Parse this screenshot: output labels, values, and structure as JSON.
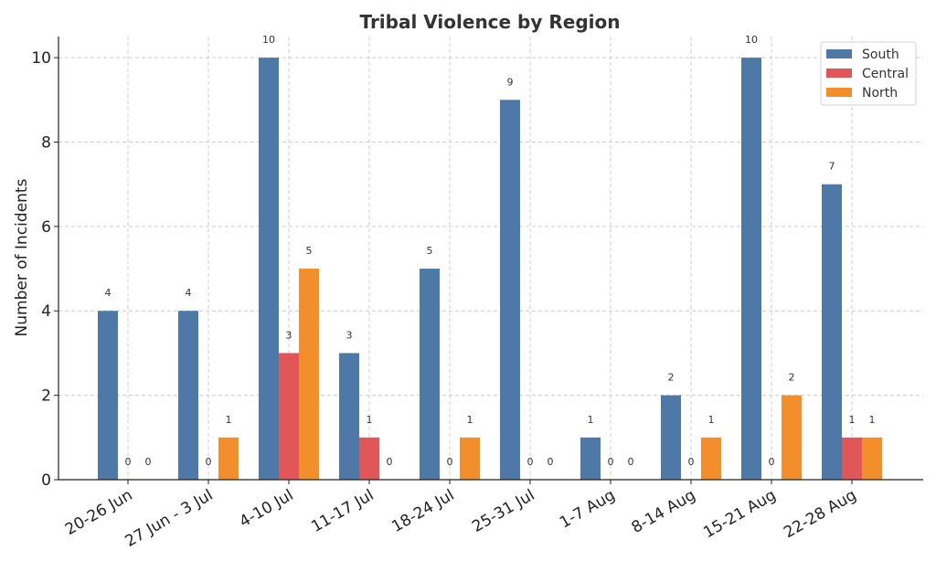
{
  "chart_data": {
    "type": "bar",
    "title": "Tribal Violence by Region",
    "xlabel": "",
    "ylabel": "Number of Incidents",
    "ylim": [
      0,
      10.5
    ],
    "yticks": [
      0,
      2,
      4,
      6,
      8,
      10
    ],
    "grid": true,
    "legend_position": "top-right",
    "categories": [
      "20-26 Jun",
      "27 Jun - 3 Jul",
      "4-10 Jul",
      "11-17 Jul",
      "18-24 Jul",
      "25-31 Jul",
      "1-7 Aug",
      "8-14 Aug",
      "15-21 Aug",
      "22-28 Aug"
    ],
    "series": [
      {
        "name": "South",
        "color": "#4e79a7",
        "values": [
          4,
          4,
          10,
          3,
          5,
          9,
          1,
          2,
          10,
          7
        ]
      },
      {
        "name": "Central",
        "color": "#e15759",
        "values": [
          0,
          0,
          3,
          1,
          0,
          0,
          0,
          0,
          0,
          1
        ]
      },
      {
        "name": "North",
        "color": "#f28e2b",
        "values": [
          0,
          1,
          5,
          0,
          1,
          0,
          0,
          1,
          2,
          1
        ]
      }
    ]
  }
}
